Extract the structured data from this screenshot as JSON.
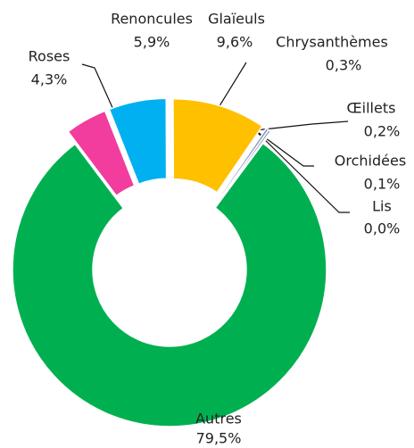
{
  "chart_data": {
    "type": "donut",
    "categories": [
      "Roses",
      "Renoncules",
      "Glaïeuls",
      "Chrysanthèmes",
      "Œillets",
      "Orchidées",
      "Lis",
      "Autres"
    ],
    "values": [
      4.3,
      5.9,
      9.6,
      0.3,
      0.2,
      0.1,
      0.0,
      79.5
    ],
    "value_labels": [
      "4,3%",
      "5,9%",
      "9,6%",
      "0,3%",
      "0,2%",
      "0,1%",
      "0,0%",
      "79,5%"
    ],
    "colors": [
      "#f23c9e",
      "#00b0f0",
      "#ffc000",
      "#8c9cc4",
      "#4a5a8a",
      "#b0b8d0",
      "#303a60",
      "#00b050"
    ]
  }
}
